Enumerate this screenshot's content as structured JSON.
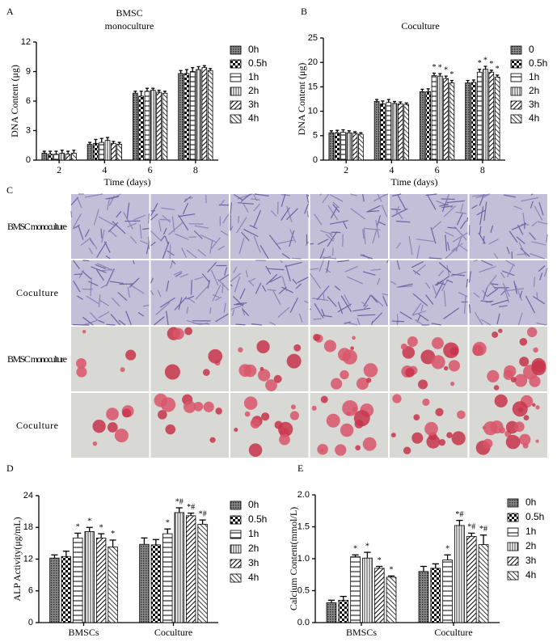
{
  "chart_data": [
    {
      "type": "bar",
      "panel": "A",
      "title": "BMSC",
      "subtitle": "monoculture",
      "xlabel": "Time (days)",
      "ylabel": "DNA Content (μg)",
      "categories": [
        "2",
        "4",
        "6",
        "8"
      ],
      "ylim": [
        0,
        12
      ],
      "yticks": [
        0,
        3,
        6,
        9,
        12
      ],
      "series": [
        {
          "name": "0h",
          "color": "#000000",
          "values": [
            0.7,
            1.6,
            6.8,
            8.8
          ],
          "errors": [
            0.2,
            0.2,
            0.2,
            0.3
          ]
        },
        {
          "name": "0.5h",
          "color": "#000000",
          "values": [
            0.6,
            1.7,
            6.5,
            8.8
          ],
          "errors": [
            0.3,
            0.4,
            0.5,
            0.4
          ]
        },
        {
          "name": "1h",
          "color": "#000000",
          "values": [
            0.6,
            1.8,
            7.0,
            9.0
          ],
          "errors": [
            0.3,
            0.4,
            0.3,
            0.4
          ]
        },
        {
          "name": "2h",
          "color": "#000000",
          "values": [
            0.7,
            2.0,
            7.1,
            9.2
          ],
          "errors": [
            0.3,
            0.3,
            0.2,
            0.3
          ]
        },
        {
          "name": "3h",
          "color": "#000000",
          "values": [
            0.6,
            1.7,
            6.9,
            9.4
          ],
          "errors": [
            0.3,
            0.2,
            0.2,
            0.2
          ]
        },
        {
          "name": "4h",
          "color": "#000000",
          "values": [
            0.7,
            1.6,
            6.8,
            9.1
          ],
          "errors": [
            0.3,
            0.2,
            0.2,
            0.2
          ]
        }
      ]
    },
    {
      "type": "bar",
      "panel": "B",
      "title": "Coculture",
      "xlabel": "Time (days)",
      "ylabel": "DNA Content (μg)",
      "categories": [
        "2",
        "4",
        "6",
        "8"
      ],
      "ylim": [
        0,
        25
      ],
      "yticks": [
        0,
        5,
        10,
        15,
        20,
        25
      ],
      "series": [
        {
          "name": "0",
          "color": "#000000",
          "values": [
            5.6,
            12.0,
            14.0,
            15.8
          ],
          "errors": [
            0.4,
            0.4,
            0.5,
            0.5
          ],
          "markers": [
            null,
            null,
            null,
            null
          ]
        },
        {
          "name": "0.5h",
          "color": "#000000",
          "values": [
            5.6,
            11.5,
            14.0,
            15.9
          ],
          "errors": [
            0.5,
            0.6,
            0.6,
            0.5
          ],
          "markers": [
            null,
            null,
            null,
            null
          ]
        },
        {
          "name": "1h",
          "color": "#000000",
          "values": [
            5.7,
            11.8,
            17.3,
            18.0
          ],
          "errors": [
            0.5,
            0.6,
            0.5,
            0.6
          ],
          "markers": [
            null,
            null,
            "*",
            "*"
          ]
        },
        {
          "name": "2h",
          "color": "#000000",
          "values": [
            5.6,
            11.6,
            17.2,
            18.6
          ],
          "errors": [
            0.4,
            0.4,
            0.5,
            0.6
          ],
          "markers": [
            null,
            null,
            "*",
            "*"
          ]
        },
        {
          "name": "3h",
          "color": "#000000",
          "values": [
            5.5,
            11.5,
            16.7,
            18.0
          ],
          "errors": [
            0.3,
            0.4,
            0.5,
            0.4
          ],
          "markers": [
            null,
            null,
            "*",
            "*"
          ]
        },
        {
          "name": "4h",
          "color": "#000000",
          "values": [
            5.3,
            11.4,
            15.8,
            17.0
          ],
          "errors": [
            0.3,
            0.3,
            0.5,
            0.4
          ],
          "markers": [
            null,
            null,
            "*",
            "*"
          ]
        }
      ]
    },
    {
      "type": "bar",
      "panel": "D",
      "ylabel": "ALP Activity(μg/mL)",
      "categories": [
        "BMSCs",
        "Coculture"
      ],
      "ylim": [
        0,
        24
      ],
      "yticks": [
        0,
        6,
        12,
        18,
        24
      ],
      "series": [
        {
          "name": "0h",
          "color": "#000000",
          "values": [
            12.2,
            14.8
          ],
          "errors": [
            0.6,
            1.2
          ],
          "markers": [
            null,
            null
          ]
        },
        {
          "name": "0.5h",
          "color": "#000000",
          "values": [
            12.5,
            14.7
          ],
          "errors": [
            1.0,
            1.0
          ],
          "markers": [
            null,
            null
          ]
        },
        {
          "name": "1h",
          "color": "#000000",
          "values": [
            16.0,
            16.8
          ],
          "errors": [
            0.9,
            0.9
          ],
          "markers": [
            "*",
            "*"
          ]
        },
        {
          "name": "2h",
          "color": "#000000",
          "values": [
            17.2,
            20.8
          ],
          "errors": [
            0.8,
            0.9
          ],
          "markers": [
            "*",
            "*#"
          ]
        },
        {
          "name": "3h",
          "color": "#000000",
          "values": [
            16.0,
            20.2
          ],
          "errors": [
            0.8,
            0.5
          ],
          "markers": [
            "*",
            "*#"
          ]
        },
        {
          "name": "4h",
          "color": "#000000",
          "values": [
            14.3,
            18.6
          ],
          "errors": [
            1.3,
            0.8
          ],
          "markers": [
            "*",
            "*#"
          ]
        }
      ]
    },
    {
      "type": "bar",
      "panel": "E",
      "ylabel": "Calcium Content(mmol/L)",
      "categories": [
        "BMSCs",
        "Coculture"
      ],
      "ylim": [
        0,
        2.0
      ],
      "yticks": [
        {
          "value": 0,
          "label": "0.0"
        },
        0.5,
        {
          "value": 1,
          "label": "1.0"
        },
        1.5,
        {
          "value": 2,
          "label": "2.0"
        }
      ],
      "series": [
        {
          "name": "0h",
          "color": "#000000",
          "values": [
            0.31,
            0.8
          ],
          "errors": [
            0.04,
            0.08
          ],
          "markers": [
            null,
            null
          ]
        },
        {
          "name": "0.5h",
          "color": "#000000",
          "values": [
            0.35,
            0.85
          ],
          "errors": [
            0.06,
            0.07
          ],
          "markers": [
            null,
            null
          ]
        },
        {
          "name": "1h",
          "color": "#000000",
          "values": [
            1.03,
            0.98
          ],
          "errors": [
            0.03,
            0.08
          ],
          "markers": [
            "*",
            "*"
          ]
        },
        {
          "name": "2h",
          "color": "#000000",
          "values": [
            1.01,
            1.52
          ],
          "errors": [
            0.09,
            0.08
          ],
          "markers": [
            "*",
            "*#"
          ]
        },
        {
          "name": "3h",
          "color": "#000000",
          "values": [
            0.85,
            1.35
          ],
          "errors": [
            0.03,
            0.05
          ],
          "markers": [
            "*",
            "*#"
          ]
        },
        {
          "name": "4h",
          "color": "#000000",
          "values": [
            0.71,
            1.22
          ],
          "errors": [
            0.02,
            0.15
          ],
          "markers": [
            "*",
            "*#"
          ]
        }
      ]
    }
  ],
  "figure_c": {
    "panel": "C",
    "row_labels": [
      "BMSC monoculture",
      "Coculture",
      "BMSC monoculture",
      "Coculture"
    ]
  }
}
